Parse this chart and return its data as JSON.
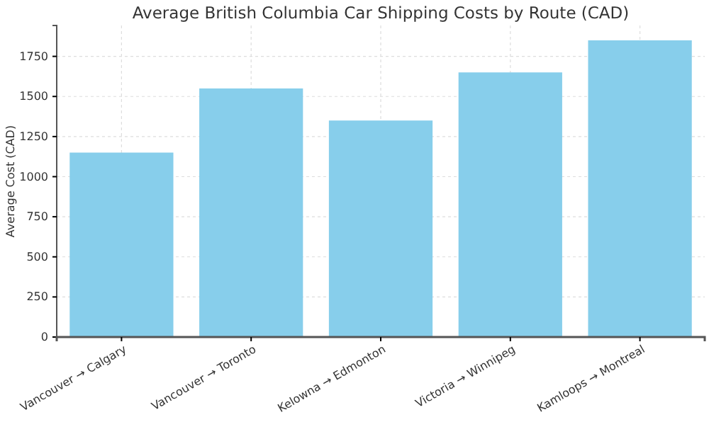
{
  "chart_data": {
    "type": "bar",
    "title": "Average British Columbia Car Shipping Costs by Route (CAD)",
    "ylabel": "Average Cost (CAD)",
    "categories": [
      "Vancouver → Calgary",
      "Vancouver → Toronto",
      "Kelowna → Edmonton",
      "Victoria → Winnipeg",
      "Kamloops → Montreal"
    ],
    "values": [
      1150,
      1550,
      1350,
      1650,
      1850
    ],
    "color": "#87ceeb",
    "ylim": [
      0,
      1942.5
    ],
    "yticks": [
      0,
      250,
      500,
      750,
      1000,
      1250,
      1500,
      1750
    ],
    "grid": true
  }
}
